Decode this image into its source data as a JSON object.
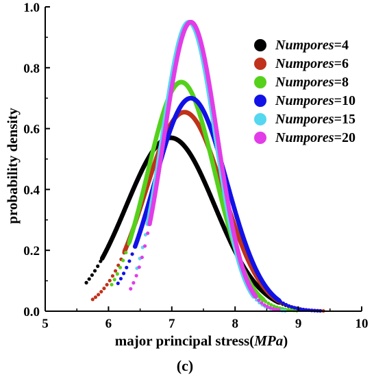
{
  "chart_data": {
    "type": "scatter",
    "xlabel_plain": "major principal stress(",
    "xlabel_unit": "MPa",
    "xlabel_close": ")",
    "ylabel": "probability density",
    "panel_label": "(c)",
    "xlim": [
      5,
      10
    ],
    "ylim": [
      0,
      1.0
    ],
    "x_ticks": [
      "5",
      "6",
      "7",
      "8",
      "9",
      "10"
    ],
    "y_ticks": [
      "0.0",
      "0.2",
      "0.4",
      "0.6",
      "0.8",
      "1.0"
    ],
    "legend_position": "top-right",
    "legend_prefix": "Numpores",
    "series": [
      {
        "name": "Numpores=4",
        "value_text": "=4",
        "color": "#000000",
        "mean": 6.98,
        "sd": 0.7,
        "xmin": 5.65,
        "xmax": 9.0
      },
      {
        "name": "Numpores=6",
        "value_text": "=6",
        "color": "#c0321b",
        "mean": 7.2,
        "sd": 0.61,
        "xmin": 5.75,
        "xmax": 9.5
      },
      {
        "name": "Numpores=8",
        "value_text": "=8",
        "color": "#55d11b",
        "mean": 7.15,
        "sd": 0.53,
        "xmin": 6.05,
        "xmax": 9.0
      },
      {
        "name": "Numpores=10",
        "value_text": "=10",
        "color": "#1212e6",
        "mean": 7.3,
        "sd": 0.57,
        "xmin": 6.15,
        "xmax": 9.5
      },
      {
        "name": "Numpores=15",
        "value_text": "=15",
        "color": "#55d7f0",
        "mean": 7.27,
        "sd": 0.42,
        "xmin": 6.45,
        "xmax": 8.9
      },
      {
        "name": "Numpores=20",
        "value_text": "=20",
        "color": "#e23ce8",
        "mean": 7.3,
        "sd": 0.42,
        "xmin": 6.35,
        "xmax": 8.7
      }
    ]
  }
}
